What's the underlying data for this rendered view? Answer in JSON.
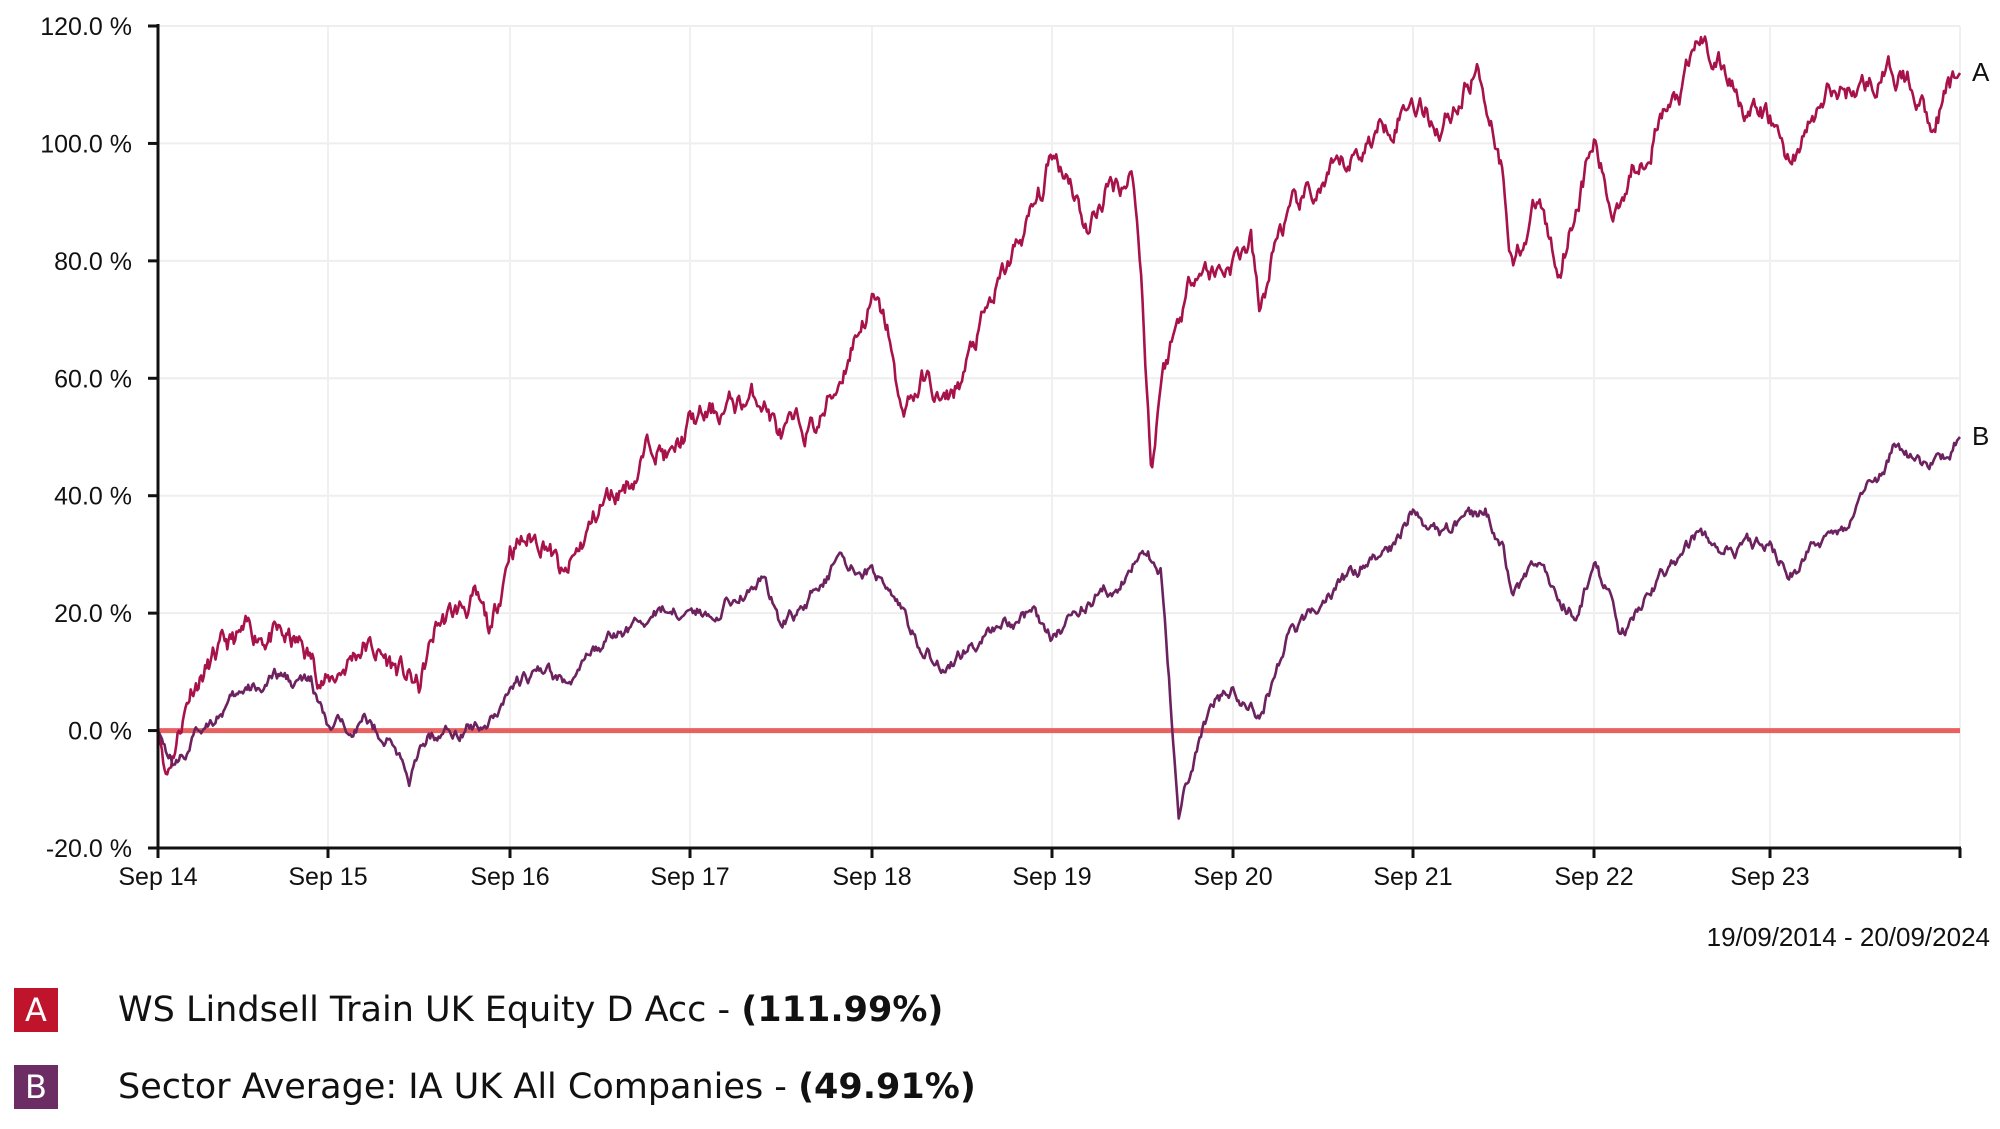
{
  "chart_data": {
    "type": "line",
    "title": "",
    "xlabel": "",
    "ylabel": "",
    "ylim": [
      -20,
      120
    ],
    "yticks": [
      "120.0 %",
      "100.0 %",
      "80.0 %",
      "60.0 %",
      "40.0 %",
      "20.0 %",
      "0.0 %",
      "-20.0 %"
    ],
    "categories": [
      "Sep 14",
      "Sep 15",
      "Sep 16",
      "Sep 17",
      "Sep 18",
      "Sep 19",
      "Sep 20",
      "Sep 21",
      "Sep 22",
      "Sep 23"
    ],
    "date_range": "19/09/2014 - 20/09/2024",
    "grid": true,
    "legend_position": "bottom",
    "series": [
      {
        "name": "WS Lindsell Train UK Equity D Acc",
        "label": "A",
        "final_value": "111.99%",
        "color": "#a8124a",
        "points": [
          [
            0,
            0
          ],
          [
            0.05,
            -7
          ],
          [
            0.2,
            8
          ],
          [
            0.4,
            14
          ],
          [
            0.6,
            17
          ],
          [
            0.85,
            14
          ],
          [
            1.0,
            8
          ],
          [
            1.2,
            15
          ],
          [
            1.4,
            10
          ],
          [
            1.5,
            7
          ],
          [
            1.6,
            18
          ],
          [
            1.8,
            22
          ],
          [
            1.9,
            16
          ],
          [
            2.0,
            32
          ],
          [
            2.2,
            33
          ],
          [
            2.3,
            25
          ],
          [
            2.5,
            38
          ],
          [
            2.7,
            44
          ],
          [
            2.8,
            50
          ],
          [
            2.9,
            46
          ],
          [
            3.0,
            52
          ],
          [
            3.2,
            55
          ],
          [
            3.4,
            57
          ],
          [
            3.5,
            50
          ],
          [
            3.7,
            52
          ],
          [
            3.8,
            58
          ],
          [
            3.9,
            67
          ],
          [
            4.0,
            73
          ],
          [
            4.1,
            67
          ],
          [
            4.15,
            54
          ],
          [
            4.3,
            60
          ],
          [
            4.4,
            55
          ],
          [
            4.5,
            60
          ],
          [
            4.6,
            68
          ],
          [
            4.8,
            82
          ],
          [
            4.95,
            92
          ],
          [
            5.0,
            98
          ],
          [
            5.1,
            95
          ],
          [
            5.2,
            85
          ],
          [
            5.3,
            92
          ],
          [
            5.45,
            95
          ],
          [
            5.5,
            74
          ],
          [
            5.55,
            44
          ],
          [
            5.6,
            60
          ],
          [
            5.7,
            70
          ],
          [
            5.8,
            80
          ],
          [
            5.9,
            78
          ],
          [
            6.0,
            80
          ],
          [
            6.1,
            83
          ],
          [
            6.15,
            70
          ],
          [
            6.25,
            85
          ],
          [
            6.4,
            90
          ],
          [
            6.6,
            95
          ],
          [
            6.8,
            102
          ],
          [
            7.0,
            108
          ],
          [
            7.15,
            103
          ],
          [
            7.3,
            110
          ],
          [
            7.35,
            113
          ],
          [
            7.45,
            103
          ],
          [
            7.5,
            95
          ],
          [
            7.55,
            80
          ],
          [
            7.7,
            90
          ],
          [
            7.8,
            78
          ],
          [
            7.9,
            90
          ],
          [
            8.0,
            100
          ],
          [
            8.1,
            88
          ],
          [
            8.2,
            95
          ],
          [
            8.4,
            105
          ],
          [
            8.5,
            108
          ],
          [
            8.6,
            118
          ],
          [
            8.8,
            110
          ],
          [
            8.9,
            105
          ],
          [
            9.0,
            104
          ],
          [
            9.1,
            97
          ],
          [
            9.3,
            108
          ],
          [
            9.5,
            110
          ],
          [
            9.65,
            112
          ],
          [
            9.75,
            110
          ],
          [
            9.85,
            104
          ],
          [
            10.0,
            112
          ]
        ]
      },
      {
        "name": "Sector Average: IA UK All Companies",
        "label": "B",
        "final_value": "49.91%",
        "color": "#6d2260",
        "points": [
          [
            0,
            0
          ],
          [
            0.1,
            -6
          ],
          [
            0.3,
            2
          ],
          [
            0.5,
            6
          ],
          [
            0.7,
            9
          ],
          [
            0.9,
            8
          ],
          [
            1.0,
            0
          ],
          [
            1.2,
            2
          ],
          [
            1.35,
            -2
          ],
          [
            1.45,
            -8
          ],
          [
            1.55,
            -1
          ],
          [
            1.8,
            1
          ],
          [
            1.9,
            2
          ],
          [
            2.0,
            8
          ],
          [
            2.2,
            10
          ],
          [
            2.3,
            8
          ],
          [
            2.5,
            14
          ],
          [
            2.7,
            18
          ],
          [
            2.9,
            21
          ],
          [
            3.1,
            20
          ],
          [
            3.3,
            24
          ],
          [
            3.4,
            26
          ],
          [
            3.5,
            18
          ],
          [
            3.6,
            20
          ],
          [
            3.7,
            25
          ],
          [
            3.8,
            28
          ],
          [
            4.0,
            27
          ],
          [
            4.1,
            25
          ],
          [
            4.2,
            18
          ],
          [
            4.4,
            10
          ],
          [
            4.5,
            13
          ],
          [
            4.7,
            18
          ],
          [
            4.9,
            20
          ],
          [
            5.0,
            16
          ],
          [
            5.2,
            22
          ],
          [
            5.4,
            26
          ],
          [
            5.5,
            30
          ],
          [
            5.6,
            28
          ],
          [
            5.7,
            -15
          ],
          [
            5.8,
            -3
          ],
          [
            5.9,
            5
          ],
          [
            6.0,
            7
          ],
          [
            6.15,
            2
          ],
          [
            6.3,
            15
          ],
          [
            6.5,
            22
          ],
          [
            6.7,
            28
          ],
          [
            6.9,
            32
          ],
          [
            7.0,
            38
          ],
          [
            7.15,
            33
          ],
          [
            7.3,
            36
          ],
          [
            7.4,
            38
          ],
          [
            7.5,
            32
          ],
          [
            7.55,
            22
          ],
          [
            7.7,
            28
          ],
          [
            7.8,
            24
          ],
          [
            7.9,
            20
          ],
          [
            8.0,
            28
          ],
          [
            8.1,
            22
          ],
          [
            8.15,
            15
          ],
          [
            8.3,
            22
          ],
          [
            8.5,
            30
          ],
          [
            8.6,
            34
          ],
          [
            8.8,
            30
          ],
          [
            9.0,
            33
          ],
          [
            9.1,
            26
          ],
          [
            9.2,
            30
          ],
          [
            9.4,
            35
          ],
          [
            9.5,
            40
          ],
          [
            9.6,
            44
          ],
          [
            9.65,
            48
          ],
          [
            9.8,
            45
          ],
          [
            9.9,
            46
          ],
          [
            10.0,
            50
          ]
        ]
      }
    ]
  },
  "legend": [
    {
      "marker": "A",
      "label": "WS Lindsell Train UK Equity D Acc - ",
      "value": "(111.99%)",
      "color": "#c0142d"
    },
    {
      "marker": "B",
      "label": "Sector Average: IA UK All Companies - ",
      "value": "(49.91%)",
      "color": "#6b2d63"
    }
  ],
  "baseline_color": "#e8615f"
}
